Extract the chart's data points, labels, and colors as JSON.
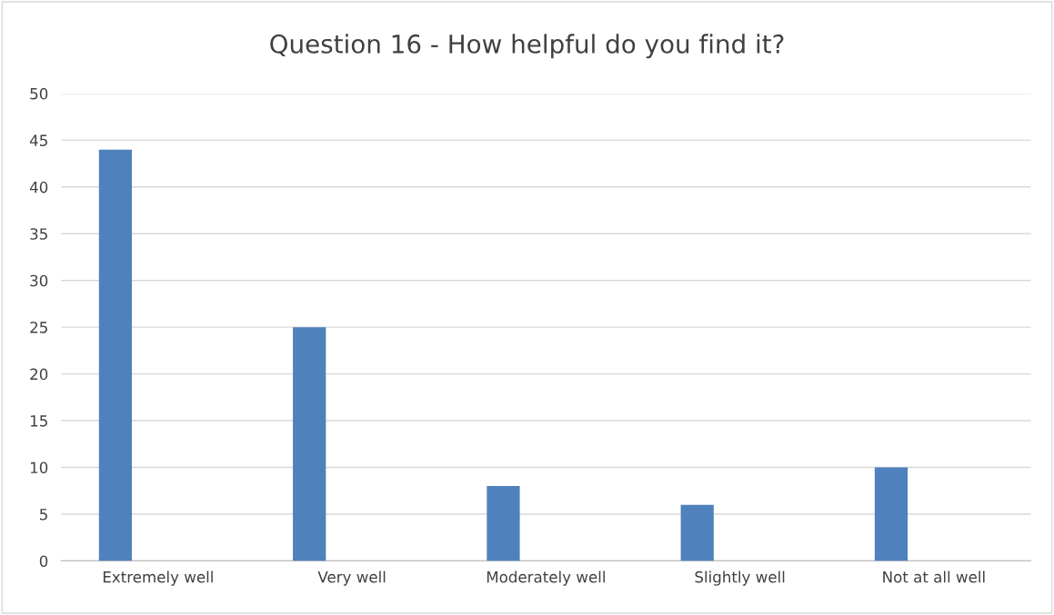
{
  "chart_data": {
    "type": "bar",
    "title": "Question 16 - How helpful do you find it?",
    "categories": [
      "Extremely well",
      "Very well",
      "Moderately well",
      "Slightly well",
      "Not at all well"
    ],
    "values": [
      44,
      25,
      8,
      6,
      10
    ],
    "color": "#4f81bd",
    "ylim": [
      0,
      50
    ],
    "yticks": [
      0,
      5,
      10,
      15,
      20,
      25,
      30,
      35,
      40,
      45,
      50
    ],
    "grid": "y",
    "legend": false
  }
}
